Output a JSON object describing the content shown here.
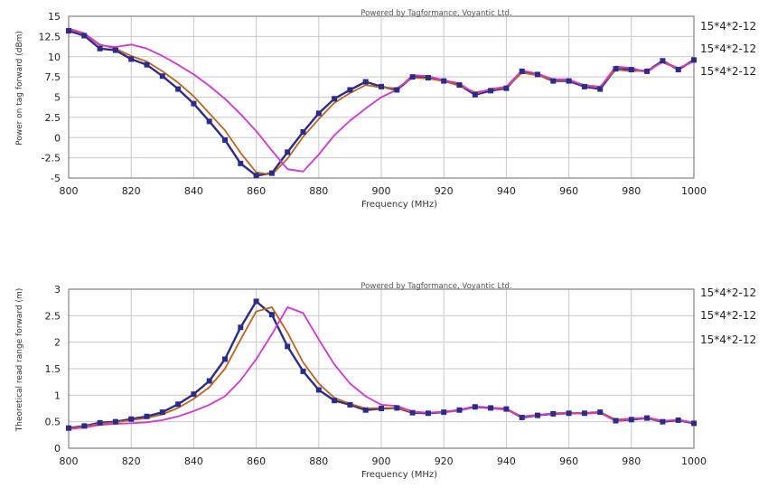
{
  "chart_data": [
    {
      "type": "line",
      "watermark": "Powered by Tagformance, Voyantic Ltd.",
      "xlabel": "Frequency (MHz)",
      "ylabel": "Power on tag forward (dBm)",
      "xlim": [
        800,
        1000
      ],
      "ylim": [
        -5,
        15
      ],
      "xticks": [
        800,
        820,
        840,
        860,
        880,
        900,
        920,
        940,
        960,
        980,
        1000
      ],
      "yticks": [
        -5,
        -2.5,
        0,
        2.5,
        5,
        7.5,
        10,
        12.5,
        15
      ],
      "ytick_labels": [
        "-5",
        "-2.5",
        "0",
        "2.5",
        "5",
        "7.5",
        "10",
        "12.5",
        "15"
      ],
      "grid": true,
      "legend_position": "right",
      "series": [
        {
          "name": "15*4*2-12",
          "color": "#2b2b8c",
          "markers": true,
          "x": [
            800,
            805,
            810,
            815,
            820,
            825,
            830,
            835,
            840,
            845,
            850,
            855,
            860,
            865,
            870,
            875,
            880,
            885,
            890,
            895,
            900,
            905,
            910,
            915,
            920,
            925,
            930,
            935,
            940,
            945,
            950,
            955,
            960,
            965,
            970,
            975,
            980,
            985,
            990,
            995,
            1000
          ],
          "y": [
            13.2,
            12.6,
            11.0,
            10.8,
            9.7,
            9.0,
            7.6,
            6.0,
            4.2,
            2.0,
            -0.3,
            -3.2,
            -4.7,
            -4.4,
            -1.8,
            0.7,
            3.0,
            4.8,
            5.9,
            6.9,
            6.3,
            5.9,
            7.5,
            7.4,
            7.0,
            6.5,
            5.3,
            5.8,
            6.1,
            8.2,
            7.8,
            7.0,
            7.0,
            6.3,
            6.0,
            8.5,
            8.4,
            8.2,
            9.5,
            8.4,
            9.6
          ]
        },
        {
          "name": "15*4*2-12",
          "color": "#c06418",
          "markers": false,
          "x": [
            800,
            805,
            810,
            815,
            820,
            825,
            830,
            835,
            840,
            845,
            850,
            855,
            860,
            865,
            870,
            875,
            880,
            885,
            890,
            895,
            900,
            905,
            910,
            915,
            920,
            925,
            930,
            935,
            940,
            945,
            950,
            955,
            960,
            965,
            970,
            975,
            980,
            985,
            990,
            995,
            1000
          ],
          "y": [
            13.5,
            12.9,
            11.5,
            11.0,
            10.1,
            9.4,
            8.2,
            6.8,
            5.1,
            3.0,
            0.9,
            -1.9,
            -4.3,
            -4.6,
            -2.6,
            0.1,
            2.3,
            4.3,
            5.5,
            6.5,
            6.2,
            6.1,
            7.4,
            7.3,
            7.0,
            6.4,
            5.6,
            5.9,
            6.2,
            8.0,
            7.7,
            7.1,
            7.1,
            6.5,
            6.3,
            8.4,
            8.2,
            8.3,
            9.3,
            8.5,
            9.5
          ]
        },
        {
          "name": "15*4*2-12",
          "color": "#d633d6",
          "markers": false,
          "x": [
            800,
            805,
            810,
            815,
            820,
            825,
            830,
            835,
            840,
            845,
            850,
            855,
            860,
            865,
            870,
            875,
            880,
            885,
            890,
            895,
            900,
            905,
            910,
            915,
            920,
            925,
            930,
            935,
            940,
            945,
            950,
            955,
            960,
            965,
            970,
            975,
            980,
            985,
            990,
            995,
            1000
          ],
          "y": [
            13.4,
            12.8,
            11.4,
            11.2,
            11.5,
            11.0,
            10.1,
            9.0,
            7.8,
            6.4,
            4.8,
            2.9,
            0.8,
            -1.6,
            -3.9,
            -4.2,
            -2.1,
            0.3,
            2.1,
            3.6,
            5.0,
            5.9,
            7.7,
            7.6,
            7.1,
            6.7,
            5.4,
            6.0,
            6.3,
            8.3,
            7.9,
            7.2,
            7.2,
            6.4,
            6.2,
            8.8,
            8.6,
            8.1,
            9.4,
            8.6,
            9.4
          ]
        }
      ]
    },
    {
      "type": "line",
      "watermark": "Powered by Tagformance, Voyantic Ltd.",
      "xlabel": "Frequency (MHz)",
      "ylabel": "Theoretical read range forward (m)",
      "xlim": [
        800,
        1000
      ],
      "ylim": [
        0,
        3
      ],
      "xticks": [
        800,
        820,
        840,
        860,
        880,
        900,
        920,
        940,
        960,
        980,
        1000
      ],
      "yticks": [
        0,
        0.5,
        1,
        1.5,
        2,
        2.5,
        3
      ],
      "ytick_labels": [
        "0",
        "0.5",
        "1",
        "1.5",
        "2",
        "2.5",
        "3"
      ],
      "grid": true,
      "legend_position": "right",
      "series": [
        {
          "name": "15*4*2-12",
          "color": "#2b2b8c",
          "markers": true,
          "x": [
            800,
            805,
            810,
            815,
            820,
            825,
            830,
            835,
            840,
            845,
            850,
            855,
            860,
            865,
            870,
            875,
            880,
            885,
            890,
            895,
            900,
            905,
            910,
            915,
            920,
            925,
            930,
            935,
            940,
            945,
            950,
            955,
            960,
            965,
            970,
            975,
            980,
            985,
            990,
            995,
            1000
          ],
          "y": [
            0.38,
            0.42,
            0.48,
            0.5,
            0.55,
            0.6,
            0.68,
            0.83,
            1.02,
            1.27,
            1.68,
            2.28,
            2.77,
            2.52,
            1.92,
            1.45,
            1.1,
            0.9,
            0.82,
            0.72,
            0.75,
            0.76,
            0.67,
            0.66,
            0.68,
            0.72,
            0.78,
            0.76,
            0.74,
            0.58,
            0.62,
            0.65,
            0.66,
            0.66,
            0.68,
            0.52,
            0.54,
            0.57,
            0.5,
            0.53,
            0.47
          ]
        },
        {
          "name": "15*4*2-12",
          "color": "#c06418",
          "markers": false,
          "x": [
            800,
            805,
            810,
            815,
            820,
            825,
            830,
            835,
            840,
            845,
            850,
            855,
            860,
            865,
            870,
            875,
            880,
            885,
            890,
            895,
            900,
            905,
            910,
            915,
            920,
            925,
            930,
            935,
            940,
            945,
            950,
            955,
            960,
            965,
            970,
            975,
            980,
            985,
            990,
            995,
            1000
          ],
          "y": [
            0.37,
            0.41,
            0.46,
            0.49,
            0.53,
            0.57,
            0.64,
            0.76,
            0.93,
            1.15,
            1.5,
            2.05,
            2.58,
            2.66,
            2.18,
            1.62,
            1.22,
            0.95,
            0.84,
            0.75,
            0.76,
            0.76,
            0.68,
            0.67,
            0.69,
            0.72,
            0.77,
            0.76,
            0.74,
            0.6,
            0.63,
            0.66,
            0.67,
            0.66,
            0.68,
            0.54,
            0.56,
            0.57,
            0.51,
            0.54,
            0.48
          ]
        },
        {
          "name": "15*4*2-12",
          "color": "#d633d6",
          "markers": false,
          "x": [
            800,
            805,
            810,
            815,
            820,
            825,
            830,
            835,
            840,
            845,
            850,
            855,
            860,
            865,
            870,
            875,
            880,
            885,
            890,
            895,
            900,
            905,
            910,
            915,
            920,
            925,
            930,
            935,
            940,
            945,
            950,
            955,
            960,
            965,
            970,
            975,
            980,
            985,
            990,
            995,
            1000
          ],
          "y": [
            0.36,
            0.39,
            0.44,
            0.46,
            0.47,
            0.49,
            0.53,
            0.6,
            0.7,
            0.82,
            0.98,
            1.28,
            1.68,
            2.15,
            2.66,
            2.55,
            2.05,
            1.58,
            1.22,
            0.98,
            0.82,
            0.8,
            0.69,
            0.67,
            0.68,
            0.71,
            0.78,
            0.75,
            0.73,
            0.59,
            0.62,
            0.65,
            0.66,
            0.65,
            0.67,
            0.51,
            0.55,
            0.58,
            0.52,
            0.53,
            0.48
          ]
        }
      ]
    }
  ]
}
